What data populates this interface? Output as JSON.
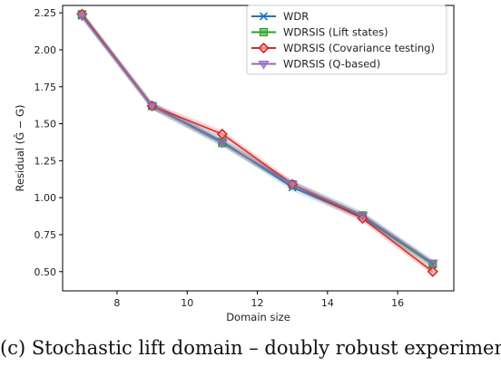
{
  "chart_data": {
    "type": "line",
    "xlabel": "Domain size",
    "ylabel": "Residual (Ĝ − G)",
    "x": [
      7,
      9,
      11,
      13,
      15,
      17
    ],
    "xlim": [
      6.45,
      17.6
    ],
    "ylim": [
      0.37,
      2.3
    ],
    "xticks": [
      8,
      10,
      12,
      14,
      16
    ],
    "yticks": [
      0.5,
      0.75,
      1.0,
      1.25,
      1.5,
      1.75,
      2.0,
      2.25
    ],
    "xtick_labels": [
      "8",
      "10",
      "12",
      "14",
      "16"
    ],
    "ytick_labels": [
      "0.50",
      "0.75",
      "1.00",
      "1.25",
      "1.50",
      "1.75",
      "2.00",
      "2.25"
    ],
    "grid": false,
    "legend_position": "upper right",
    "series": [
      {
        "name": "WDR",
        "values": [
          2.23,
          1.62,
          1.38,
          1.07,
          0.87,
          0.55
        ],
        "color": "#1f77b4",
        "marker": "x"
      },
      {
        "name": "WDRSIS (Lift states)",
        "values": [
          2.24,
          1.62,
          1.37,
          1.09,
          0.88,
          0.55
        ],
        "color": "#2ca02c",
        "marker": "square"
      },
      {
        "name": "WDRSIS (Covariance testing)",
        "values": [
          2.24,
          1.62,
          1.43,
          1.09,
          0.86,
          0.5
        ],
        "color": "#d62728",
        "marker": "diamond"
      },
      {
        "name": "WDRSIS (Q-based)",
        "values": [
          2.23,
          1.62,
          1.37,
          1.09,
          0.88,
          0.56
        ],
        "color": "#9467bd",
        "marker": "triangle-down"
      }
    ]
  },
  "caption": "(c) Stochastic lift domain – doubly robust experiments"
}
